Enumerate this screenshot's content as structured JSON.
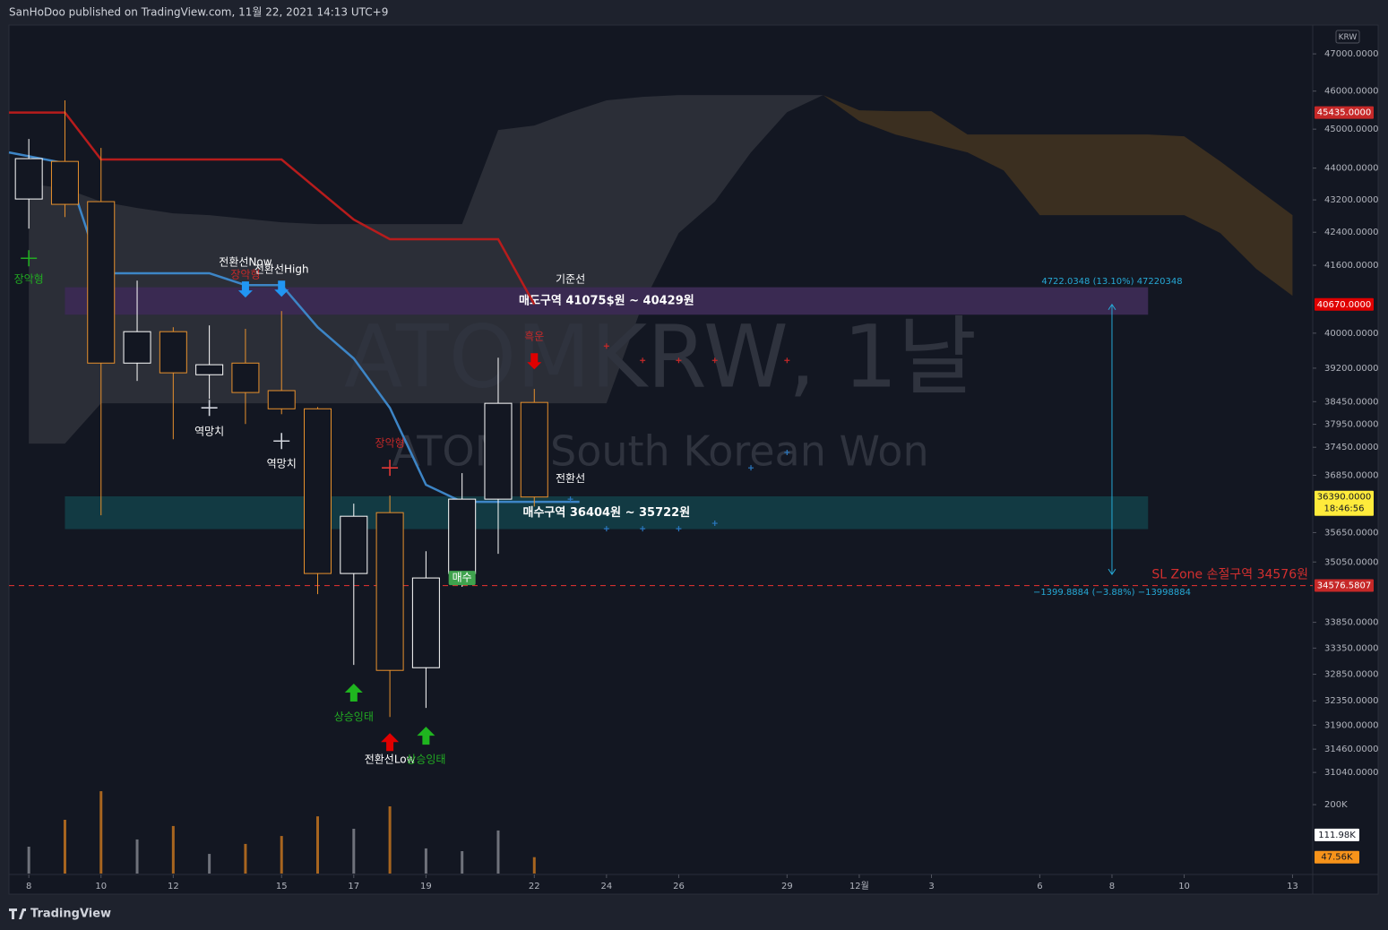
{
  "header": "SanHoDoo published on TradingView.com, 11월 22, 2021 14:13 UTC+9",
  "footer": "TradingView",
  "chart_data": {
    "type": "candlestick",
    "watermark": "ATOMKRW, 1날",
    "subtitle": "ATOM / South Korean Won",
    "currency": "KRW",
    "log_scale": true,
    "xlim": [
      -0.55,
      35.56
    ],
    "xticks": [
      {
        "value": 0,
        "label": "8"
      },
      {
        "value": 2,
        "label": "10"
      },
      {
        "value": 4,
        "label": "12"
      },
      {
        "value": 7,
        "label": "15"
      },
      {
        "value": 9,
        "label": "17"
      },
      {
        "value": 11,
        "label": "19"
      },
      {
        "value": 14,
        "label": "22"
      },
      {
        "value": 16,
        "label": "24"
      },
      {
        "value": 18,
        "label": "26"
      },
      {
        "value": 21,
        "label": "29"
      },
      {
        "value": 23,
        "label": "12월"
      },
      {
        "value": 25,
        "label": "3"
      },
      {
        "value": 28,
        "label": "6"
      },
      {
        "value": 30,
        "label": "8"
      },
      {
        "value": 32,
        "label": "10"
      },
      {
        "value": 35,
        "label": "13"
      }
    ],
    "ylim": [
      30914,
      47787
    ],
    "yticks": [
      {
        "value": 47000,
        "label": "47000.0000"
      },
      {
        "value": 46000,
        "label": "46000.0000"
      },
      {
        "value": 45000,
        "label": "45000.0000"
      },
      {
        "value": 44000,
        "label": "44000.0000"
      },
      {
        "value": 43200,
        "label": "43200.0000"
      },
      {
        "value": 42400,
        "label": "42400.0000"
      },
      {
        "value": 41600,
        "label": "41600.0000"
      },
      {
        "value": 40000,
        "label": "40000.0000"
      },
      {
        "value": 39200,
        "label": "39200.0000"
      },
      {
        "value": 38450,
        "label": "38450.0000"
      },
      {
        "value": 37950,
        "label": "37950.0000"
      },
      {
        "value": 37450,
        "label": "37450.0000"
      },
      {
        "value": 36850,
        "label": "36850.0000"
      },
      {
        "value": 35650,
        "label": "35650.0000"
      },
      {
        "value": 35050,
        "label": "35050.0000"
      },
      {
        "value": 33850,
        "label": "33850.0000"
      },
      {
        "value": 33350,
        "label": "33350.0000"
      },
      {
        "value": 32850,
        "label": "32850.0000"
      },
      {
        "value": 32350,
        "label": "32350.0000"
      },
      {
        "value": 31900,
        "label": "31900.0000"
      },
      {
        "value": 31460,
        "label": "31460.0000"
      },
      {
        "value": 31040,
        "label": "31040.0000"
      }
    ],
    "up_color": "#ffffff",
    "down_color": "#e8912d",
    "open": [
      43222,
      44170,
      43156,
      39315,
      40035,
      39052,
      39315,
      38695,
      38291,
      34818,
      36063,
      32975,
      34818,
      36345,
      38432
    ],
    "high": [
      44746,
      45755,
      44514,
      41233,
      40138,
      40180,
      40100,
      40514,
      38330,
      36251,
      36420,
      35269,
      36895,
      39438,
      38733
    ],
    "low": [
      42489,
      42774,
      36007,
      38912,
      37624,
      38511,
      37957,
      38172,
      34405,
      33027,
      32049,
      32218,
      34550,
      35217,
      36191
    ],
    "close": [
      44241,
      43089,
      39315,
      40035,
      39095,
      39278,
      38653,
      38291,
      34818,
      35988,
      32924,
      34728,
      36345,
      38413,
      36390
    ],
    "volume": {
      "values": [
        78,
        156,
        239,
        99,
        138,
        57,
        86,
        109,
        166,
        130,
        195,
        73,
        65,
        125,
        47.56
      ],
      "ylim": [
        0,
        273
      ],
      "up_color": "#6f727b",
      "down_color": "#a8651f",
      "yticks": [
        {
          "value": 200,
          "label": "200K"
        }
      ],
      "labels": [
        {
          "value": 111.98,
          "label": "111.98K",
          "color": "#ffffff",
          "text_color": "#131722"
        },
        {
          "value": 47.56,
          "label": "47.56K",
          "color": "#f7931a",
          "text_color": "#131722"
        }
      ]
    },
    "clouds": [
      {
        "color": "#2b2e37",
        "x": [
          0,
          1,
          2,
          3,
          4,
          5,
          6,
          7,
          8,
          9,
          10,
          11,
          12,
          13,
          14,
          15,
          16,
          17,
          18,
          19,
          20,
          21,
          22
        ],
        "upper": [
          43602,
          43488,
          43156,
          42999,
          42866,
          42822,
          42733,
          42644,
          42601,
          42601,
          42601,
          42601,
          42601,
          44978,
          45095,
          45444,
          45755,
          45847,
          45895,
          45895,
          45895,
          45895,
          45895
        ],
        "lower": [
          37530,
          37530,
          38413,
          38413,
          38413,
          38413,
          38413,
          38413,
          38413,
          38413,
          38413,
          38413,
          38413,
          38413,
          38413,
          38413,
          38413,
          40670,
          42381,
          43156,
          44401,
          45444,
          45895
        ]
      },
      {
        "color": "#3b2f20",
        "x": [
          22,
          23,
          24,
          25,
          26,
          27,
          28,
          29,
          30,
          31,
          32,
          33,
          34,
          35
        ],
        "upper": [
          45895,
          45492,
          45468,
          45468,
          44862,
          44862,
          44862,
          44862,
          44862,
          44862,
          44815,
          44170,
          43488,
          42822
        ],
        "lower": [
          45895,
          45213,
          44862,
          44631,
          44401,
          43941,
          42822,
          42822,
          42822,
          42822,
          42822,
          42381,
          41510,
          40872
        ]
      }
    ],
    "lines": [
      {
        "color": "#b71c1c",
        "x": [
          -0.55,
          1,
          2,
          7,
          9,
          10,
          13,
          14
        ],
        "values": [
          45435,
          45435,
          44219,
          44219,
          42710,
          42230,
          42230,
          40670
        ]
      },
      {
        "color": "#3d85c6",
        "x": [
          -0.55,
          1,
          2,
          5,
          6,
          7,
          8,
          9,
          10,
          11,
          12,
          13,
          14,
          15.25
        ],
        "values": [
          44400,
          44124,
          41409,
          41409,
          41125,
          41125,
          40138,
          39419,
          38312,
          36647,
          36289,
          36289,
          36289,
          36289
        ]
      }
    ],
    "zones": [
      {
        "label": "매도구역 41075$원 ~ 40429원",
        "top": 41075,
        "bottom": 40429,
        "x": [
          1,
          31
        ],
        "color": "#3a2a52"
      },
      {
        "label": "매수구역 36404원 ~ 35722원",
        "top": 36404,
        "bottom": 35722,
        "x": [
          1,
          31
        ],
        "color": "#123a43"
      }
    ],
    "sl": {
      "value": 34576.5807,
      "label": "SL Zone 손절구역 34576원",
      "color": "#d32f2f"
    },
    "price_labels": [
      {
        "value": 45435,
        "label": "45435.0000",
        "color": "#c62828",
        "text_color": "#ffffff"
      },
      {
        "value": 40670,
        "label": "40670.0000",
        "color": "#e00000",
        "text_color": "#ffffff"
      },
      {
        "value": 36390,
        "label": "36390.0000",
        "time": "18:46:56",
        "color": "#ffeb3b",
        "text_color": "#131722"
      },
      {
        "value": 34576.5807,
        "label": "34576.5807",
        "color": "#c62828",
        "text_color": "#ffffff"
      }
    ],
    "measure": {
      "x": 30,
      "from": 40670,
      "to": 34800,
      "top_label": "4722.0348 (13.10%) 47220348",
      "bottom_label": "−1399.8884 (−3.88%) −13998884",
      "color": "#26a9d6"
    },
    "plus_markers": [
      {
        "color": "#c62828",
        "x": [
          16,
          17,
          18,
          19,
          21
        ],
        "values": [
          39704,
          39377,
          39377,
          39377,
          39377
        ]
      },
      {
        "color": "#2a78c0",
        "x": [
          15,
          16,
          17,
          18,
          19,
          20,
          21
        ],
        "values": [
          36345,
          35730,
          35730,
          35730,
          35842,
          37008,
          37339
        ]
      }
    ],
    "annotations": [
      {
        "text": "장악형",
        "x": 0,
        "price": 41256,
        "color": "#22ab22",
        "marker": "cross",
        "marker_price": 41768,
        "marker_color": "#22ab22"
      },
      {
        "text": "장악형",
        "x": 6,
        "price": 41360,
        "color": "#c62828"
      },
      {
        "text": "전환선Now",
        "x": 6,
        "price": 41666,
        "color": "#ffffff",
        "marker": "arrow-down",
        "marker_price": 41022,
        "marker_color": "#2196f3"
      },
      {
        "text": "전환선High",
        "x": 7,
        "price": 41493,
        "color": "#ffffff",
        "marker": "arrow-down",
        "marker_price": 41041,
        "marker_color": "#2196f3"
      },
      {
        "text": "역망치",
        "x": 5,
        "price": 37783,
        "color": "#ffffff",
        "marker": "cross",
        "marker_price": 38312,
        "marker_color": "#d1d4dc"
      },
      {
        "text": "역망치",
        "x": 7,
        "price": 37084,
        "color": "#ffffff",
        "marker": "cross",
        "marker_price": 37585,
        "marker_color": "#d1d4dc"
      },
      {
        "text": "장악형",
        "x": 10,
        "price": 37530,
        "color": "#c62828",
        "marker": "cross",
        "marker_price": 37008,
        "marker_color": "#e53935"
      },
      {
        "text": "상승잉태",
        "x": 9,
        "price": 32049,
        "color": "#22ab22",
        "marker": "arrow-up",
        "marker_price": 32505,
        "marker_color": "#1fb51f"
      },
      {
        "text": "전환선Low",
        "x": 10,
        "price": 31264,
        "color": "#ffffff",
        "marker": "arrow-up",
        "marker_price": 31589,
        "marker_color": "#e00000"
      },
      {
        "text": "상승잉태",
        "x": 11,
        "price": 31264,
        "color": "#22ab22",
        "marker": "arrow-up",
        "marker_price": 31706,
        "marker_color": "#1fb51f"
      },
      {
        "text": "매수",
        "x": 12,
        "price": 34728,
        "color": "#ffffff",
        "background": "#3fa34d"
      },
      {
        "text": "기준선",
        "x": 15,
        "price": 41256,
        "color": "#ffffff"
      },
      {
        "text": "흑운",
        "x": 14,
        "price": 39912,
        "color": "#c62828",
        "marker": "arrow-down",
        "marker_price": 39357,
        "marker_color": "#e00000"
      },
      {
        "text": "전환선",
        "x": 15,
        "price": 36777,
        "color": "#ffffff"
      }
    ]
  }
}
